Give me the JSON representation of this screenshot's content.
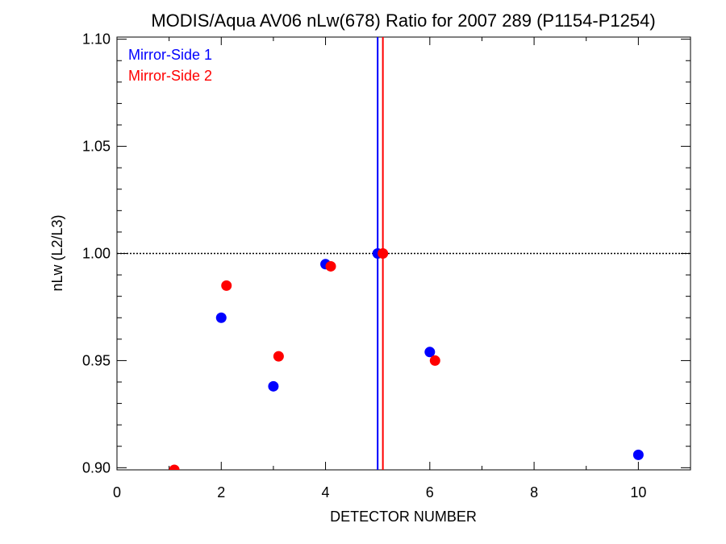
{
  "chart_data": {
    "type": "scatter",
    "title": "MODIS/Aqua AV06 nLw(678) Ratio for 2007 289 (P1154-P1254)",
    "xlabel": "DETECTOR NUMBER",
    "ylabel": "nLw (L2/L3)",
    "xlim": [
      0,
      11
    ],
    "ylim": [
      0.899,
      1.101
    ],
    "x_ticks": [
      0,
      2,
      4,
      6,
      8,
      10
    ],
    "x_tick_labels": [
      "0",
      "2",
      "4",
      "6",
      "8",
      "10"
    ],
    "y_ticks": [
      0.9,
      0.95,
      1.0,
      1.05,
      1.1
    ],
    "y_tick_labels": [
      "0.90",
      "0.95",
      "1.00",
      "1.05",
      "1.10"
    ],
    "reference_line_y": 1.0,
    "legend_position": "top-left",
    "series": [
      {
        "name": "Mirror-Side 1",
        "color": "#0000ff",
        "vline_x": 5.0,
        "points": [
          {
            "x": 2,
            "y": 0.97
          },
          {
            "x": 3,
            "y": 0.938
          },
          {
            "x": 4,
            "y": 0.995
          },
          {
            "x": 5,
            "y": 1.0
          },
          {
            "x": 6,
            "y": 0.954
          },
          {
            "x": 10,
            "y": 0.906
          }
        ]
      },
      {
        "name": "Mirror-Side 2",
        "color": "#ff0000",
        "vline_x": 5.1,
        "points": [
          {
            "x": 1.1,
            "y": 0.899
          },
          {
            "x": 2.1,
            "y": 0.985
          },
          {
            "x": 3.1,
            "y": 0.952
          },
          {
            "x": 4.1,
            "y": 0.994
          },
          {
            "x": 5.1,
            "y": 1.0
          },
          {
            "x": 6.1,
            "y": 0.95
          }
        ]
      }
    ]
  }
}
